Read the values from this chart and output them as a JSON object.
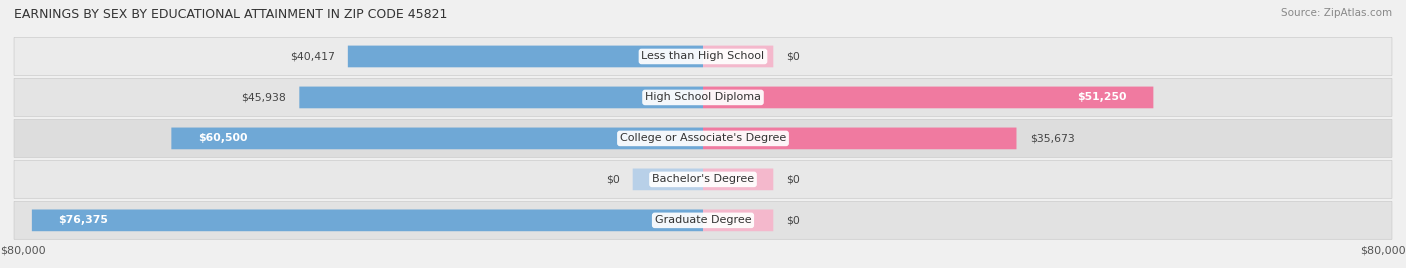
{
  "title": "EARNINGS BY SEX BY EDUCATIONAL ATTAINMENT IN ZIP CODE 45821",
  "source": "Source: ZipAtlas.com",
  "male_color": "#6fa8d6",
  "female_color": "#f07aa0",
  "male_color_stub": "#b8d0e8",
  "female_color_stub": "#f4b8cc",
  "bg_color": "#f0f0f0",
  "row_bg_color": "#e8e8e8",
  "max_value": 80000,
  "categories": [
    "Less than High School",
    "High School Diploma",
    "College or Associate's Degree",
    "Bachelor's Degree",
    "Graduate Degree"
  ],
  "male_values": [
    40417,
    45938,
    60500,
    0,
    76375
  ],
  "female_values": [
    0,
    51250,
    35673,
    0,
    0
  ],
  "male_labels": [
    "$40,417",
    "$45,938",
    "$60,500",
    "$0",
    "$76,375"
  ],
  "female_labels": [
    "$0",
    "$51,250",
    "$35,673",
    "$0",
    "$0"
  ],
  "male_label_inside": [
    false,
    false,
    true,
    false,
    true
  ],
  "female_label_inside": [
    false,
    true,
    false,
    false,
    false
  ],
  "x_tick_left": "$80,000",
  "x_tick_right": "$80,000",
  "stub_size": 8000
}
